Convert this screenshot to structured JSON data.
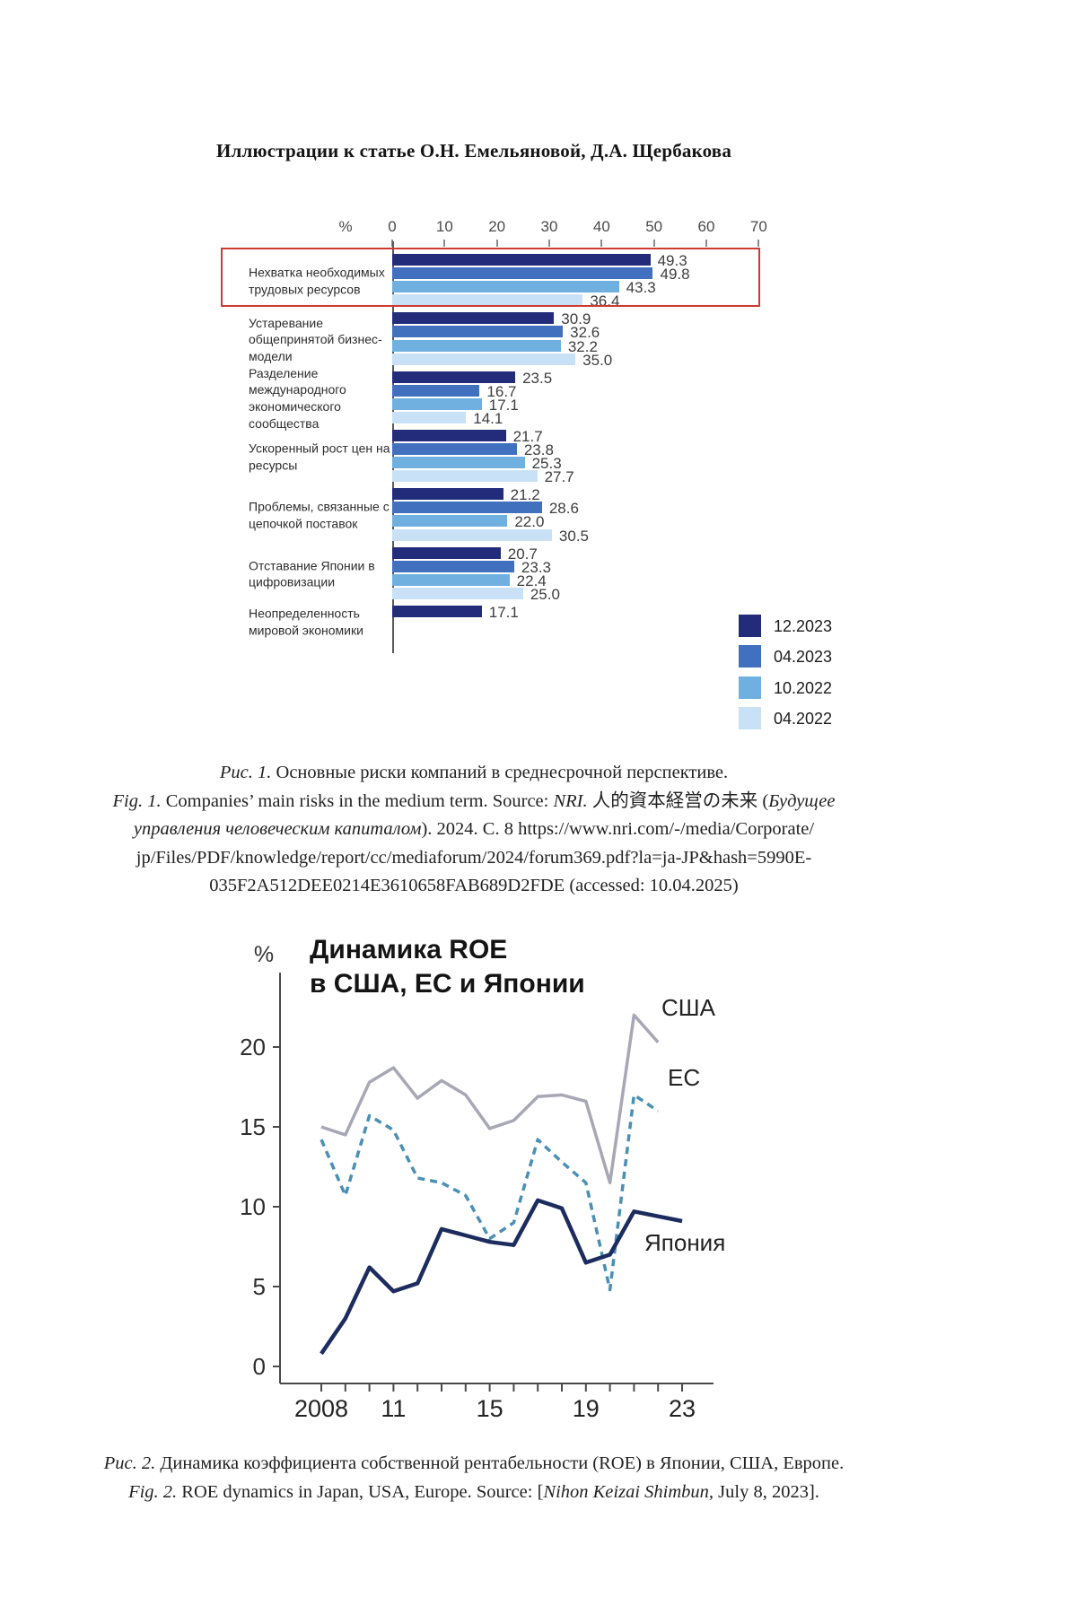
{
  "page": {
    "title": "Иллюстрации к статье О.Н. Емельяновой, Д.А. Щербакова"
  },
  "fig1": {
    "caption_lines": [
      [
        {
          "t": "Рис. 1.",
          "i": 1
        },
        {
          "t": " Основные риски компаний в среднесрочной перспективе.",
          "i": 0
        }
      ],
      [
        {
          "t": "Fig. 1.",
          "i": 1
        },
        {
          "t": " Companies’ main risks in the medium term. Source: ",
          "i": 0
        },
        {
          "t": "NRI.",
          "i": 1
        },
        {
          "t": " 人的資本経営の未来 (",
          "i": 0
        },
        {
          "t": "Будущее",
          "i": 1
        }
      ],
      [
        {
          "t": "управления человеческим капиталом",
          "i": 1
        },
        {
          "t": "). 2024. С. 8 https://www.nri.com/-/media/Corporate/",
          "i": 0
        }
      ],
      [
        {
          "t": "jp/Files/PDF/knowledge/report/cc/mediaforum/2024/forum369.pdf?la=ja-JP&hash=5990E-",
          "i": 0
        }
      ],
      [
        {
          "t": "035F2A512DEE0214E3610658FAB689D2FDE (accessed: 10.04.2025)",
          "i": 0
        }
      ]
    ]
  },
  "fig2": {
    "title_lines": [
      "Динамика ROE",
      "в США, ЕС и Японии"
    ],
    "caption_lines": [
      [
        {
          "t": "Рис. 2.",
          "i": 1
        },
        {
          "t": " Динамика коэффициента собственной рентабельности (ROE) в Японии, США, Европе.",
          "i": 0
        }
      ],
      [
        {
          "t": "Fig. 2.",
          "i": 1
        },
        {
          "t": " ROE dynamics in Japan, USA, Europe. Source: [",
          "i": 0
        },
        {
          "t": "Nihon Keizai Shimbun,",
          "i": 1
        },
        {
          "t": " July 8, 2023].",
          "i": 0
        }
      ]
    ]
  },
  "chart_data": [
    {
      "type": "bar",
      "orientation": "horizontal",
      "title": "",
      "xlabel": "%",
      "xlim": [
        0,
        70
      ],
      "x_ticks": [
        0,
        10,
        20,
        30,
        40,
        50,
        60,
        70
      ],
      "grid": false,
      "legend_position": "bottom-right",
      "highlight_index": 0,
      "highlight_color": "#cf3a32",
      "categories": [
        "Нехватка необходимых трудовых ресурсов",
        "Устаревание общепринятой бизнес-модели",
        "Разделение международного экономического сообщества",
        "Ускоренный рост цен на ресурсы",
        "Проблемы, связанные с цепочкой поставок",
        "Отставание Японии в цифровизации",
        "Неопределенность мировой экономики"
      ],
      "series": [
        {
          "name": "12.2023",
          "color": "#232c7a",
          "values": [
            49.3,
            30.9,
            23.5,
            21.7,
            21.2,
            20.7,
            17.1
          ]
        },
        {
          "name": "04.2023",
          "color": "#4170bf",
          "values": [
            49.8,
            32.6,
            16.7,
            23.8,
            28.6,
            23.3,
            null
          ]
        },
        {
          "name": "10.2022",
          "color": "#6fb0e0",
          "values": [
            43.3,
            32.2,
            17.1,
            25.3,
            22.0,
            22.4,
            null
          ]
        },
        {
          "name": "04.2022",
          "color": "#c9e1f6",
          "values": [
            36.4,
            35.0,
            14.1,
            27.7,
            30.5,
            25.0,
            null
          ]
        }
      ]
    },
    {
      "type": "line",
      "title": "Динамика ROE в США, ЕС и Японии",
      "ylabel": "%",
      "ylim": [
        0,
        22
      ],
      "y_ticks": [
        0,
        5,
        10,
        15,
        20
      ],
      "x": [
        2008,
        2009,
        2010,
        2011,
        2012,
        2013,
        2014,
        2015,
        2016,
        2017,
        2018,
        2019,
        2020,
        2021,
        2022,
        2023
      ],
      "x_tick_labels": [
        {
          "year": 2008,
          "label": "2008"
        },
        {
          "year": 2011,
          "label": "11"
        },
        {
          "year": 2015,
          "label": "15"
        },
        {
          "year": 2019,
          "label": "19"
        },
        {
          "year": 2023,
          "label": "23"
        }
      ],
      "grid": false,
      "series": [
        {
          "name": "США",
          "color": "#a7a7b6",
          "style": "solid",
          "values": [
            15.0,
            14.5,
            17.8,
            18.7,
            16.8,
            17.9,
            17.0,
            14.9,
            15.4,
            16.9,
            17.0,
            16.6,
            11.5,
            22.0,
            20.3,
            null
          ]
        },
        {
          "name": "ЕС",
          "color": "#4a8fb4",
          "style": "dashed",
          "values": [
            14.2,
            10.7,
            15.7,
            14.8,
            11.8,
            11.5,
            10.7,
            8.0,
            9.0,
            14.2,
            12.8,
            11.5,
            4.8,
            17.0,
            16.0,
            null
          ]
        },
        {
          "name": "Япония",
          "color": "#1c2c5e",
          "style": "solid",
          "values": [
            0.8,
            3.0,
            6.2,
            4.7,
            5.2,
            8.6,
            8.2,
            7.8,
            7.6,
            10.4,
            9.9,
            6.5,
            7.0,
            9.7,
            9.4,
            9.1
          ]
        }
      ]
    }
  ]
}
